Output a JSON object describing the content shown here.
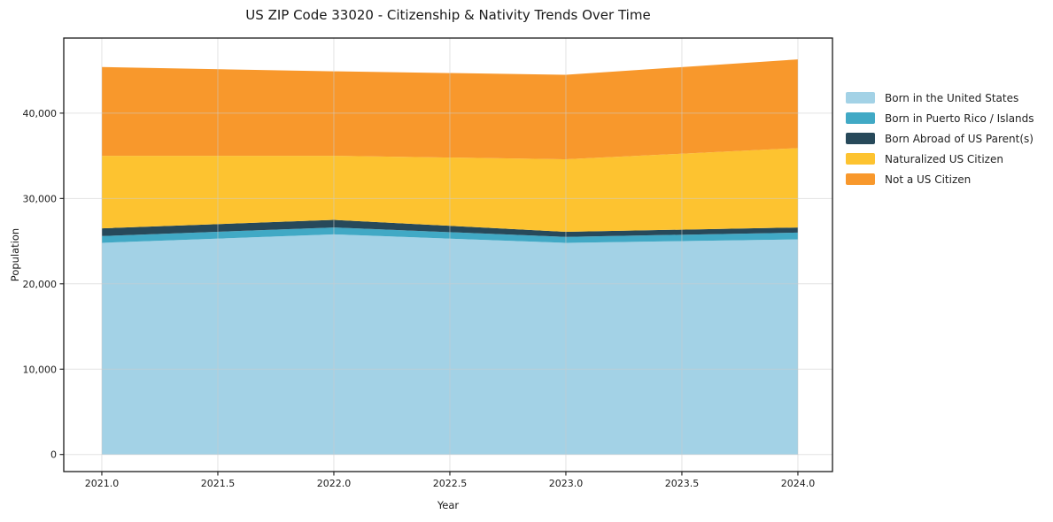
{
  "figure": {
    "title": "US ZIP Code 33020 - Citizenship & Nativity Trends Over Time"
  },
  "chart_data": {
    "type": "area",
    "stacked": true,
    "title": "US ZIP Code 33020 - Citizenship & Nativity Trends Over Time",
    "xlabel": "Year",
    "ylabel": "Population",
    "x": [
      2021,
      2022,
      2023,
      2024
    ],
    "series": [
      {
        "name": "Born in the United States",
        "color": "#A3D2E6",
        "values": [
          24800,
          25800,
          24800,
          25200
        ]
      },
      {
        "name": "Born in Puerto Rico / Islands",
        "color": "#41A9C5",
        "values": [
          800,
          800,
          700,
          800
        ]
      },
      {
        "name": "Born Abroad of US Parent(s)",
        "color": "#27495A",
        "values": [
          900,
          900,
          600,
          600
        ]
      },
      {
        "name": "Naturalized US Citizen",
        "color": "#FDC330",
        "values": [
          8500,
          7500,
          8500,
          9300
        ]
      },
      {
        "name": "Not a US Citizen",
        "color": "#F8982C",
        "values": [
          10400,
          9900,
          9900,
          10400
        ]
      }
    ],
    "totals": [
      45400,
      44900,
      44500,
      46300
    ],
    "xticks": [
      2021.0,
      2021.5,
      2022.0,
      2022.5,
      2023.0,
      2023.5,
      2024.0
    ],
    "xtick_labels": [
      "2021.0",
      "2021.5",
      "2022.0",
      "2022.5",
      "2023.0",
      "2023.5",
      "2024.0"
    ],
    "yticks": [
      0,
      10000,
      20000,
      30000,
      40000
    ],
    "ytick_labels": [
      "0",
      "10,000",
      "20,000",
      "30,000",
      "40,000"
    ],
    "xlim": [
      2020.836,
      2024.149
    ],
    "ylim": [
      -2000,
      48800
    ],
    "grid": true,
    "legend_position": "right",
    "spine_color": "#1a1a1a",
    "grid_color": "rgba(204,204,204,0.55)"
  }
}
